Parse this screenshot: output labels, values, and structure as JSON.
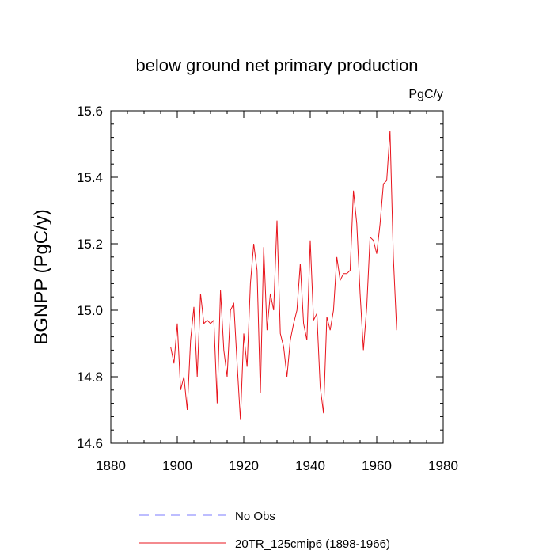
{
  "chart_data": {
    "type": "line",
    "title": "below ground net primary production",
    "units_label": "PgC/y",
    "xlabel": "",
    "ylabel": "BGNPP  (PgC/y)",
    "xlim": [
      1880,
      1980
    ],
    "ylim": [
      14.6,
      15.6
    ],
    "x_major_ticks": [
      1880,
      1900,
      1920,
      1940,
      1960,
      1980
    ],
    "x_tick_labels": [
      "1880",
      "1900",
      "1920",
      "1940",
      "1960",
      "1980"
    ],
    "y_major_ticks": [
      14.6,
      14.8,
      15.0,
      15.2,
      15.4,
      15.6
    ],
    "y_tick_labels": [
      "14.6",
      "14.8",
      "15.0",
      "15.2",
      "15.4",
      "15.6"
    ],
    "grid": false,
    "legend_position": "bottom",
    "series": [
      {
        "name": "20TR_125cmip6 (1898-1966)",
        "color": "#e8141c",
        "style": "solid",
        "x": [
          1898,
          1899,
          1900,
          1901,
          1902,
          1903,
          1904,
          1905,
          1906,
          1907,
          1908,
          1909,
          1910,
          1911,
          1912,
          1913,
          1914,
          1915,
          1916,
          1917,
          1918,
          1919,
          1920,
          1921,
          1922,
          1923,
          1924,
          1925,
          1926,
          1927,
          1928,
          1929,
          1930,
          1931,
          1932,
          1933,
          1934,
          1935,
          1936,
          1937,
          1938,
          1939,
          1940,
          1941,
          1942,
          1943,
          1944,
          1945,
          1946,
          1947,
          1948,
          1949,
          1950,
          1951,
          1952,
          1953,
          1954,
          1955,
          1956,
          1957,
          1958,
          1959,
          1960,
          1961,
          1962,
          1963,
          1964,
          1965,
          1966
        ],
        "values": [
          14.89,
          14.84,
          14.96,
          14.76,
          14.8,
          14.7,
          14.91,
          15.01,
          14.8,
          15.05,
          14.96,
          14.97,
          14.96,
          14.97,
          14.72,
          15.06,
          14.88,
          14.8,
          15.0,
          15.02,
          14.84,
          14.67,
          14.93,
          14.83,
          15.08,
          15.2,
          15.12,
          14.75,
          15.19,
          14.94,
          15.05,
          15.0,
          15.27,
          14.93,
          14.89,
          14.8,
          14.91,
          14.96,
          15.0,
          15.14,
          14.96,
          14.91,
          15.21,
          14.97,
          14.99,
          14.77,
          14.69,
          14.98,
          14.94,
          15.0,
          15.16,
          15.09,
          15.11,
          15.11,
          15.12,
          15.36,
          15.26,
          15.05,
          14.88,
          15.01,
          15.22,
          15.21,
          15.17,
          15.26,
          15.38,
          15.39,
          15.54,
          15.16,
          14.94
        ]
      },
      {
        "name": "No Obs",
        "color": "#7b7bff",
        "style": "dashed",
        "x": [],
        "values": []
      }
    ]
  }
}
